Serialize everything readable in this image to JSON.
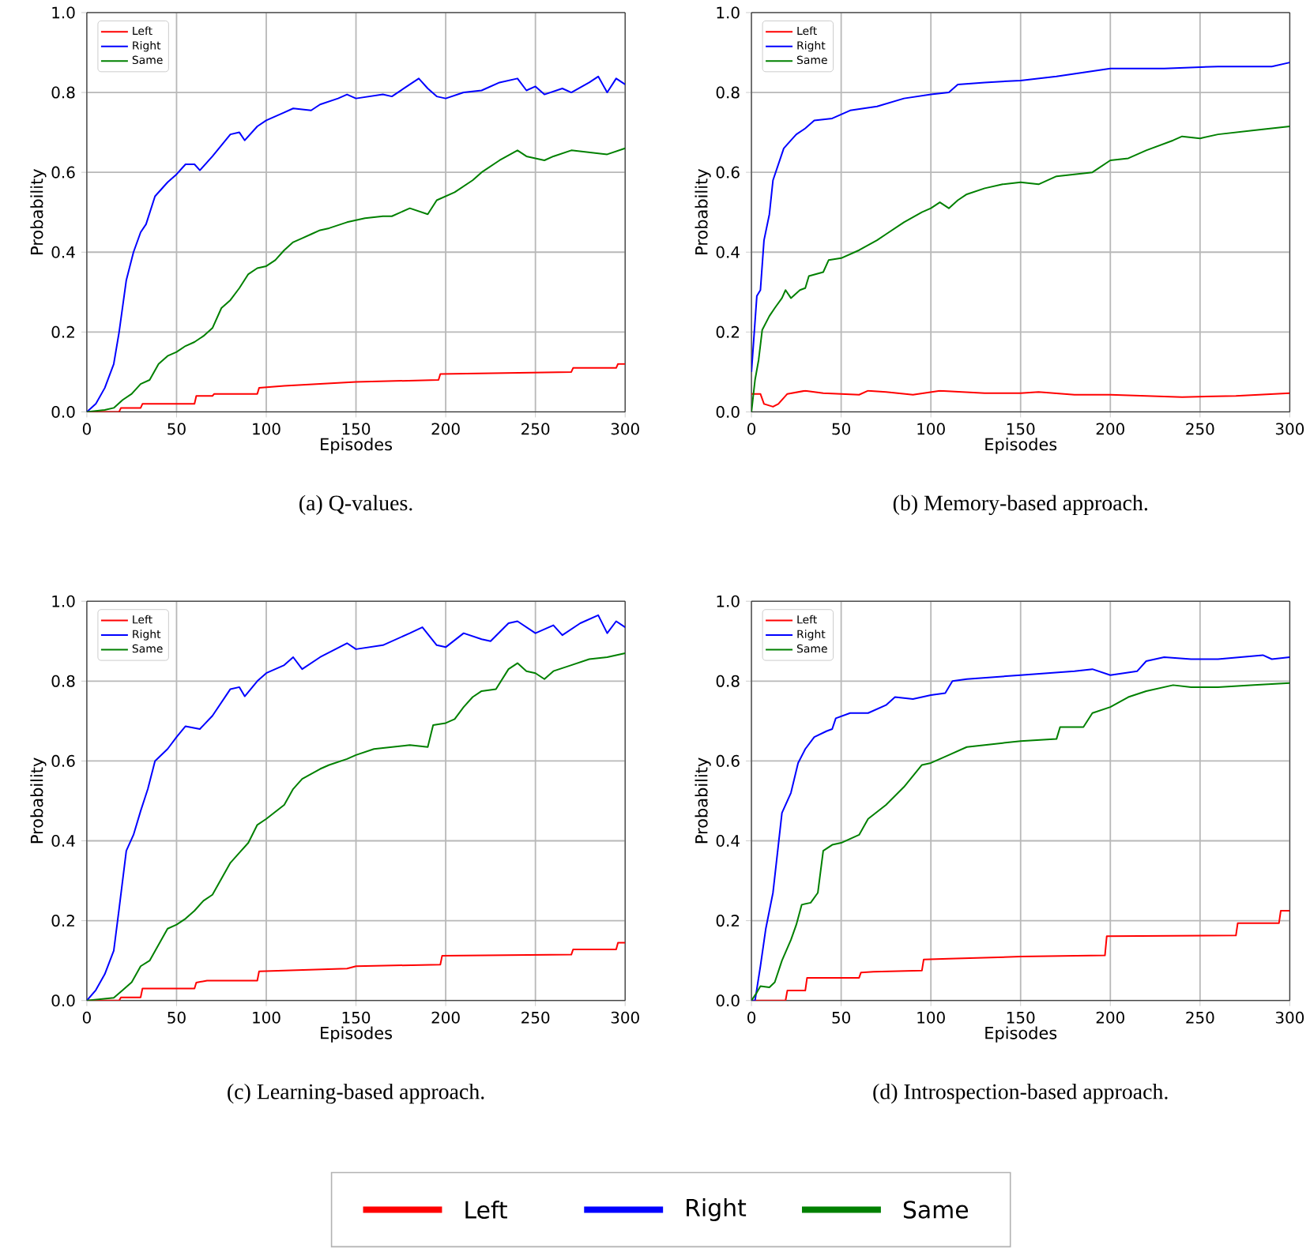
{
  "chart_data": [
    {
      "type": "line",
      "title": "(a) Q-values.",
      "xlabel": "Episodes",
      "ylabel": "Probability",
      "xlim": [
        0,
        300
      ],
      "ylim": [
        0,
        1
      ],
      "xticks": [
        0,
        50,
        100,
        150,
        200,
        250,
        300
      ],
      "yticks": [
        {
          "value": 0,
          "label": "0.0"
        },
        {
          "value": 0.2,
          "label": "0.2"
        },
        {
          "value": 0.4,
          "label": "0.4"
        },
        {
          "value": 0.6,
          "label": "0.6"
        },
        {
          "value": 0.8,
          "label": "0.8"
        },
        {
          "value": 1,
          "label": "1.0"
        }
      ],
      "grid": true,
      "legend": "top left",
      "series": [
        {
          "name": "Left",
          "color": "#ff0000",
          "x": [
            0,
            18,
            19,
            30,
            31,
            60,
            61,
            70,
            71,
            95,
            96,
            110,
            150,
            196,
            197,
            270,
            271,
            295,
            296,
            300
          ],
          "values": [
            0,
            0,
            0.01,
            0.01,
            0.02,
            0.02,
            0.04,
            0.04,
            0.045,
            0.045,
            0.06,
            0.065,
            0.075,
            0.08,
            0.095,
            0.1,
            0.11,
            0.11,
            0.12,
            0.12
          ]
        },
        {
          "name": "Right",
          "color": "#0000ff",
          "x": [
            0,
            5,
            10,
            15,
            18,
            22,
            26,
            30,
            33,
            38,
            45,
            50,
            55,
            60,
            63,
            70,
            80,
            85,
            88,
            95,
            100,
            110,
            115,
            125,
            130,
            140,
            145,
            150,
            165,
            170,
            180,
            185,
            190,
            195,
            200,
            210,
            220,
            230,
            240,
            245,
            250,
            255,
            265,
            270,
            280,
            285,
            290,
            295,
            300
          ],
          "values": [
            0,
            0.02,
            0.06,
            0.12,
            0.2,
            0.33,
            0.4,
            0.45,
            0.47,
            0.54,
            0.575,
            0.595,
            0.62,
            0.62,
            0.605,
            0.64,
            0.695,
            0.7,
            0.68,
            0.715,
            0.73,
            0.75,
            0.76,
            0.755,
            0.77,
            0.785,
            0.795,
            0.785,
            0.795,
            0.79,
            0.82,
            0.835,
            0.81,
            0.79,
            0.785,
            0.8,
            0.805,
            0.825,
            0.835,
            0.805,
            0.815,
            0.795,
            0.81,
            0.8,
            0.825,
            0.84,
            0.8,
            0.835,
            0.82
          ]
        },
        {
          "name": "Same",
          "color": "#008000",
          "x": [
            0,
            10,
            15,
            20,
            25,
            30,
            35,
            40,
            45,
            50,
            55,
            60,
            65,
            70,
            75,
            80,
            85,
            90,
            95,
            100,
            105,
            110,
            115,
            120,
            125,
            130,
            135,
            145,
            155,
            165,
            170,
            180,
            190,
            195,
            205,
            215,
            220,
            230,
            240,
            245,
            250,
            255,
            260,
            270,
            280,
            290,
            300
          ],
          "values": [
            0,
            0.005,
            0.01,
            0.03,
            0.045,
            0.07,
            0.08,
            0.12,
            0.14,
            0.15,
            0.165,
            0.175,
            0.19,
            0.21,
            0.26,
            0.28,
            0.31,
            0.345,
            0.36,
            0.365,
            0.38,
            0.405,
            0.425,
            0.435,
            0.445,
            0.455,
            0.46,
            0.475,
            0.485,
            0.49,
            0.49,
            0.51,
            0.495,
            0.53,
            0.55,
            0.58,
            0.6,
            0.63,
            0.655,
            0.64,
            0.635,
            0.63,
            0.64,
            0.655,
            0.65,
            0.645,
            0.66
          ]
        }
      ]
    },
    {
      "type": "line",
      "title": "(b) Memory-based approach.",
      "xlabel": "Episodes",
      "ylabel": "Probability",
      "xlim": [
        0,
        300
      ],
      "ylim": [
        0,
        1
      ],
      "xticks": [
        0,
        50,
        100,
        150,
        200,
        250,
        300
      ],
      "yticks": [
        {
          "value": 0,
          "label": "0.0"
        },
        {
          "value": 0.2,
          "label": "0.2"
        },
        {
          "value": 0.4,
          "label": "0.4"
        },
        {
          "value": 0.6,
          "label": "0.6"
        },
        {
          "value": 0.8,
          "label": "0.8"
        },
        {
          "value": 1,
          "label": "1.0"
        }
      ],
      "grid": true,
      "legend": "top left",
      "series": [
        {
          "name": "Left",
          "color": "#ff0000",
          "x": [
            0,
            5,
            7,
            12,
            15,
            20,
            30,
            40,
            60,
            65,
            75,
            90,
            105,
            130,
            150,
            160,
            180,
            200,
            240,
            270,
            300
          ],
          "values": [
            0.045,
            0.045,
            0.02,
            0.013,
            0.02,
            0.045,
            0.053,
            0.047,
            0.043,
            0.053,
            0.05,
            0.043,
            0.053,
            0.047,
            0.047,
            0.05,
            0.043,
            0.043,
            0.037,
            0.04,
            0.047
          ]
        },
        {
          "name": "Right",
          "color": "#0000ff",
          "x": [
            0,
            3,
            5,
            7,
            10,
            12,
            15,
            18,
            22,
            25,
            30,
            35,
            45,
            55,
            70,
            85,
            100,
            110,
            115,
            130,
            150,
            170,
            200,
            230,
            260,
            290,
            300
          ],
          "values": [
            0.1,
            0.29,
            0.305,
            0.43,
            0.495,
            0.58,
            0.62,
            0.66,
            0.68,
            0.695,
            0.71,
            0.73,
            0.735,
            0.755,
            0.765,
            0.785,
            0.795,
            0.8,
            0.82,
            0.825,
            0.83,
            0.84,
            0.86,
            0.86,
            0.865,
            0.865,
            0.875
          ]
        },
        {
          "name": "Same",
          "color": "#008000",
          "x": [
            0,
            2,
            4,
            6,
            10,
            13,
            17,
            19,
            22,
            27,
            30,
            32,
            40,
            43,
            50,
            60,
            70,
            75,
            85,
            95,
            100,
            105,
            110,
            115,
            120,
            130,
            140,
            150,
            160,
            170,
            190,
            200,
            210,
            220,
            235,
            240,
            250,
            260,
            280,
            300
          ],
          "values": [
            0,
            0.08,
            0.13,
            0.205,
            0.24,
            0.26,
            0.285,
            0.305,
            0.285,
            0.305,
            0.31,
            0.34,
            0.35,
            0.38,
            0.385,
            0.405,
            0.43,
            0.445,
            0.475,
            0.5,
            0.51,
            0.525,
            0.51,
            0.53,
            0.545,
            0.56,
            0.57,
            0.575,
            0.57,
            0.59,
            0.6,
            0.63,
            0.635,
            0.655,
            0.68,
            0.69,
            0.685,
            0.695,
            0.705,
            0.715
          ]
        }
      ]
    },
    {
      "type": "line",
      "title": "(c) Learning-based approach.",
      "xlabel": "Episodes",
      "ylabel": "Probability",
      "xlim": [
        0,
        300
      ],
      "ylim": [
        0,
        1
      ],
      "xticks": [
        0,
        50,
        100,
        150,
        200,
        250,
        300
      ],
      "yticks": [
        {
          "value": 0,
          "label": "0.0"
        },
        {
          "value": 0.2,
          "label": "0.2"
        },
        {
          "value": 0.4,
          "label": "0.4"
        },
        {
          "value": 0.6,
          "label": "0.6"
        },
        {
          "value": 0.8,
          "label": "0.8"
        },
        {
          "value": 1,
          "label": "1.0"
        }
      ],
      "grid": true,
      "legend": "top left",
      "series": [
        {
          "name": "Left",
          "color": "#ff0000",
          "x": [
            0,
            18,
            19,
            30,
            31,
            60,
            61,
            67,
            95,
            96,
            110,
            145,
            150,
            197,
            198,
            270,
            271,
            295,
            296,
            300
          ],
          "values": [
            0,
            0,
            0.008,
            0.008,
            0.03,
            0.03,
            0.045,
            0.05,
            0.05,
            0.073,
            0.075,
            0.08,
            0.086,
            0.09,
            0.112,
            0.115,
            0.128,
            0.128,
            0.145,
            0.145
          ]
        },
        {
          "name": "Right",
          "color": "#0000ff",
          "x": [
            0,
            5,
            10,
            15,
            18,
            22,
            26,
            30,
            34,
            38,
            45,
            50,
            55,
            63,
            70,
            80,
            85,
            88,
            95,
            100,
            110,
            115,
            120,
            130,
            145,
            150,
            165,
            180,
            187,
            195,
            200,
            210,
            220,
            225,
            235,
            240,
            250,
            260,
            265,
            275,
            285,
            290,
            295,
            300
          ],
          "values": [
            0,
            0.026,
            0.066,
            0.125,
            0.23,
            0.375,
            0.415,
            0.475,
            0.53,
            0.6,
            0.63,
            0.66,
            0.687,
            0.68,
            0.713,
            0.78,
            0.785,
            0.762,
            0.8,
            0.82,
            0.84,
            0.86,
            0.83,
            0.86,
            0.895,
            0.88,
            0.89,
            0.92,
            0.935,
            0.89,
            0.885,
            0.92,
            0.905,
            0.9,
            0.945,
            0.95,
            0.92,
            0.94,
            0.915,
            0.945,
            0.965,
            0.92,
            0.95,
            0.935
          ]
        },
        {
          "name": "Same",
          "color": "#008000",
          "x": [
            0,
            15,
            20,
            25,
            30,
            35,
            40,
            45,
            50,
            55,
            60,
            65,
            70,
            75,
            80,
            85,
            90,
            95,
            100,
            110,
            115,
            120,
            130,
            135,
            145,
            150,
            160,
            170,
            180,
            190,
            193,
            200,
            205,
            210,
            215,
            220,
            228,
            235,
            240,
            245,
            250,
            255,
            260,
            270,
            280,
            290,
            300
          ],
          "values": [
            0,
            0.007,
            0.026,
            0.046,
            0.086,
            0.1,
            0.14,
            0.18,
            0.19,
            0.205,
            0.225,
            0.25,
            0.265,
            0.305,
            0.345,
            0.37,
            0.395,
            0.44,
            0.455,
            0.49,
            0.53,
            0.555,
            0.58,
            0.59,
            0.605,
            0.615,
            0.63,
            0.635,
            0.64,
            0.635,
            0.69,
            0.695,
            0.705,
            0.735,
            0.76,
            0.775,
            0.78,
            0.83,
            0.845,
            0.825,
            0.82,
            0.805,
            0.825,
            0.84,
            0.855,
            0.86,
            0.87
          ]
        }
      ]
    },
    {
      "type": "line",
      "title": "(d) Introspection-based approach.",
      "xlabel": "Episodes",
      "ylabel": "Probability",
      "xlim": [
        0,
        300
      ],
      "ylim": [
        0,
        1
      ],
      "xticks": [
        0,
        50,
        100,
        150,
        200,
        250,
        300
      ],
      "yticks": [
        {
          "value": 0,
          "label": "0.0"
        },
        {
          "value": 0.2,
          "label": "0.2"
        },
        {
          "value": 0.4,
          "label": "0.4"
        },
        {
          "value": 0.6,
          "label": "0.6"
        },
        {
          "value": 0.8,
          "label": "0.8"
        },
        {
          "value": 1,
          "label": "1.0"
        }
      ],
      "grid": true,
      "legend": "top left",
      "series": [
        {
          "name": "Left",
          "color": "#ff0000",
          "x": [
            0,
            19,
            20,
            30,
            31,
            60,
            61,
            68,
            95,
            96,
            110,
            150,
            197,
            198,
            270,
            271,
            294,
            295,
            300
          ],
          "values": [
            0,
            0,
            0.025,
            0.025,
            0.057,
            0.057,
            0.07,
            0.072,
            0.075,
            0.103,
            0.105,
            0.11,
            0.113,
            0.161,
            0.163,
            0.194,
            0.194,
            0.225,
            0.225
          ]
        },
        {
          "name": "Right",
          "color": "#0000ff",
          "x": [
            0,
            2,
            5,
            8,
            12,
            15,
            17,
            22,
            26,
            30,
            35,
            42,
            45,
            47,
            55,
            65,
            75,
            80,
            90,
            100,
            108,
            112,
            120,
            150,
            180,
            190,
            200,
            215,
            220,
            230,
            245,
            260,
            285,
            290,
            300
          ],
          "values": [
            0,
            0,
            0.086,
            0.18,
            0.27,
            0.39,
            0.47,
            0.52,
            0.595,
            0.63,
            0.66,
            0.675,
            0.68,
            0.707,
            0.72,
            0.72,
            0.74,
            0.76,
            0.755,
            0.765,
            0.77,
            0.8,
            0.805,
            0.815,
            0.825,
            0.83,
            0.815,
            0.825,
            0.85,
            0.86,
            0.855,
            0.855,
            0.865,
            0.855,
            0.86
          ]
        },
        {
          "name": "Same",
          "color": "#008000",
          "x": [
            0,
            3,
            5,
            10,
            13,
            17,
            22,
            25,
            28,
            33,
            37,
            40,
            45,
            50,
            60,
            65,
            75,
            85,
            95,
            100,
            110,
            120,
            130,
            140,
            150,
            170,
            172,
            185,
            190,
            200,
            210,
            220,
            235,
            245,
            260,
            280,
            300
          ],
          "values": [
            0,
            0.02,
            0.036,
            0.033,
            0.046,
            0.1,
            0.152,
            0.19,
            0.24,
            0.245,
            0.27,
            0.375,
            0.39,
            0.395,
            0.415,
            0.455,
            0.49,
            0.535,
            0.59,
            0.595,
            0.615,
            0.635,
            0.64,
            0.645,
            0.65,
            0.655,
            0.685,
            0.685,
            0.72,
            0.735,
            0.76,
            0.775,
            0.79,
            0.785,
            0.785,
            0.79,
            0.795
          ]
        }
      ]
    }
  ]
}
